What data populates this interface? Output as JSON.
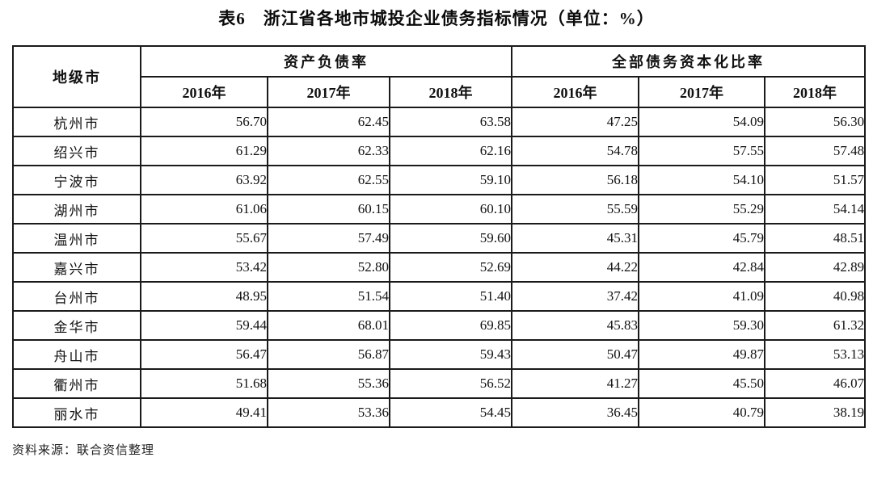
{
  "title": "表6　浙江省各地市城投企业债务指标情况（单位：%）",
  "source": "资料来源：联合资信整理",
  "table": {
    "city_header": "地级市",
    "groups": [
      {
        "label": "资产负债率",
        "years": [
          "2016年",
          "2017年",
          "2018年"
        ]
      },
      {
        "label": "全部债务资本化比率",
        "years": [
          "2016年",
          "2017年",
          "2018年"
        ]
      }
    ],
    "rows": [
      {
        "city": "杭州市",
        "values": [
          "56.70",
          "62.45",
          "63.58",
          "47.25",
          "54.09",
          "56.30"
        ]
      },
      {
        "city": "绍兴市",
        "values": [
          "61.29",
          "62.33",
          "62.16",
          "54.78",
          "57.55",
          "57.48"
        ]
      },
      {
        "city": "宁波市",
        "values": [
          "63.92",
          "62.55",
          "59.10",
          "56.18",
          "54.10",
          "51.57"
        ]
      },
      {
        "city": "湖州市",
        "values": [
          "61.06",
          "60.15",
          "60.10",
          "55.59",
          "55.29",
          "54.14"
        ]
      },
      {
        "city": "温州市",
        "values": [
          "55.67",
          "57.49",
          "59.60",
          "45.31",
          "45.79",
          "48.51"
        ]
      },
      {
        "city": "嘉兴市",
        "values": [
          "53.42",
          "52.80",
          "52.69",
          "44.22",
          "42.84",
          "42.89"
        ]
      },
      {
        "city": "台州市",
        "values": [
          "48.95",
          "51.54",
          "51.40",
          "37.42",
          "41.09",
          "40.98"
        ]
      },
      {
        "city": "金华市",
        "values": [
          "59.44",
          "68.01",
          "69.85",
          "45.83",
          "59.30",
          "61.32"
        ]
      },
      {
        "city": "舟山市",
        "values": [
          "56.47",
          "56.87",
          "59.43",
          "50.47",
          "49.87",
          "53.13"
        ]
      },
      {
        "city": "衢州市",
        "values": [
          "51.68",
          "55.36",
          "56.52",
          "41.27",
          "45.50",
          "46.07"
        ]
      },
      {
        "city": "丽水市",
        "values": [
          "49.41",
          "53.36",
          "54.45",
          "36.45",
          "40.79",
          "38.19"
        ]
      }
    ]
  }
}
